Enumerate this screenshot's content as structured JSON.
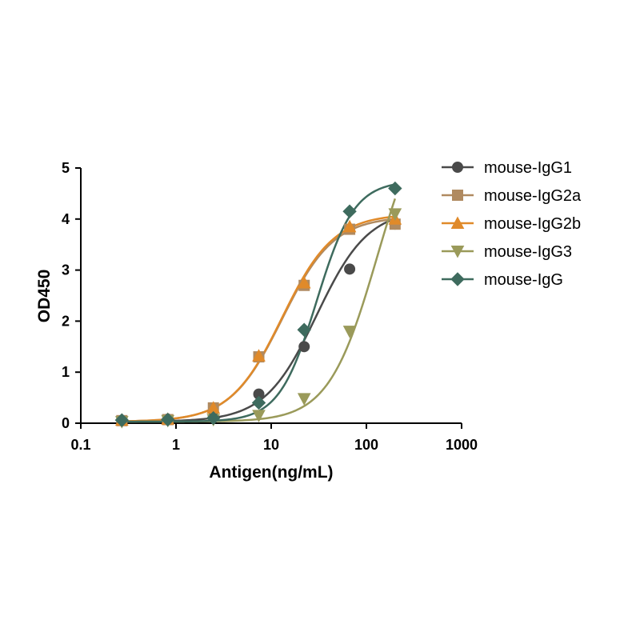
{
  "chart_data": {
    "type": "scatter",
    "xlabel": "Antigen(ng/mL)",
    "ylabel": "OD450",
    "x_scale": "log",
    "xlim": [
      0.1,
      1000
    ],
    "ylim": [
      0,
      5
    ],
    "x_ticks": [
      "0.1",
      "1",
      "10",
      "100",
      "1000"
    ],
    "y_ticks": [
      "0",
      "1",
      "2",
      "3",
      "4",
      "5"
    ],
    "legend_position": "top-right",
    "grid": false,
    "x": [
      0.27,
      0.82,
      2.47,
      7.41,
      22.2,
      66.7,
      200
    ],
    "series": [
      {
        "name": "mouse-IgG1",
        "color": "#4a4a4a",
        "marker": "circle",
        "values": [
          0.05,
          0.08,
          0.12,
          0.57,
          1.5,
          3.02,
          3.9
        ],
        "fit": {
          "bottom": 0.03,
          "top": 4.2,
          "ec50": 30,
          "hill": 1.6
        }
      },
      {
        "name": "mouse-IgG2a",
        "color": "#b08a60",
        "marker": "square",
        "values": [
          0.05,
          0.07,
          0.3,
          1.3,
          2.7,
          3.8,
          3.9
        ],
        "fit": {
          "bottom": 0.03,
          "top": 4.05,
          "ec50": 13,
          "hill": 1.6
        }
      },
      {
        "name": "mouse-IgG2b",
        "color": "#e08a2a",
        "marker": "triangle-up",
        "values": [
          0.06,
          0.08,
          0.3,
          1.32,
          2.75,
          3.85,
          4.0
        ],
        "fit": {
          "bottom": 0.03,
          "top": 4.1,
          "ec50": 13,
          "hill": 1.6
        }
      },
      {
        "name": "mouse-IgG3",
        "color": "#9a9a5a",
        "marker": "triangle-down",
        "values": [
          0.03,
          0.05,
          0.07,
          0.15,
          0.48,
          1.8,
          4.1
        ],
        "fit": {
          "bottom": 0.03,
          "top": 6.5,
          "ec50": 130,
          "hill": 1.7
        }
      },
      {
        "name": "mouse-IgG",
        "color": "#3e6b5e",
        "marker": "diamond",
        "values": [
          0.06,
          0.07,
          0.1,
          0.4,
          1.83,
          4.15,
          4.6
        ],
        "fit": {
          "bottom": 0.03,
          "top": 4.75,
          "ec50": 30,
          "hill": 2.2
        }
      }
    ]
  }
}
